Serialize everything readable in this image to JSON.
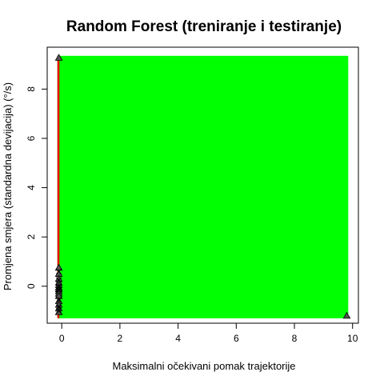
{
  "chart_data": {
    "type": "scatter",
    "title": "Random Forest (treniranje i testiranje)",
    "xlabel": "Maksimalni očekivani pomak trajektorije",
    "ylabel": "Promjena smjera (standardna devijacija) (°/s)",
    "xlim": [
      -0.5,
      10.2
    ],
    "ylim": [
      -1.5,
      9.7
    ],
    "x_ticks": [
      "0",
      "2",
      "4",
      "6",
      "8",
      "10"
    ],
    "y_ticks": [
      "0",
      "2",
      "4",
      "6",
      "8"
    ],
    "grid": false,
    "regions": [
      {
        "class": "green",
        "color": "#00ff00",
        "x": [
          -0.15,
          9.85
        ],
        "y": [
          -1.3,
          9.35
        ]
      },
      {
        "class": "red",
        "color": "#ee0000",
        "x": [
          -0.15,
          -0.08
        ],
        "y": [
          -1.3,
          9.35
        ]
      }
    ],
    "points_triangle": {
      "marker": "triangle",
      "x": [
        -0.1,
        -0.1,
        -0.1,
        -0.1,
        -0.1,
        -0.1,
        -0.1,
        -0.1,
        -0.1,
        -0.1,
        -0.1,
        -0.1,
        -0.1,
        -0.1,
        -0.1,
        9.8
      ],
      "y": [
        9.27,
        0.75,
        0.5,
        0.3,
        0.15,
        0.05,
        -0.05,
        -0.12,
        -0.2,
        -0.3,
        -0.4,
        -0.6,
        -0.75,
        -0.9,
        -1.05,
        -1.2
      ]
    },
    "points_cross": {
      "marker": "x",
      "x": [
        -0.1,
        -0.1,
        -0.1,
        -0.1,
        -0.1,
        -0.1,
        -0.1
      ],
      "y": [
        0.6,
        0.25,
        -0.02,
        -0.15,
        -0.55,
        -0.85,
        -1.0
      ]
    }
  }
}
